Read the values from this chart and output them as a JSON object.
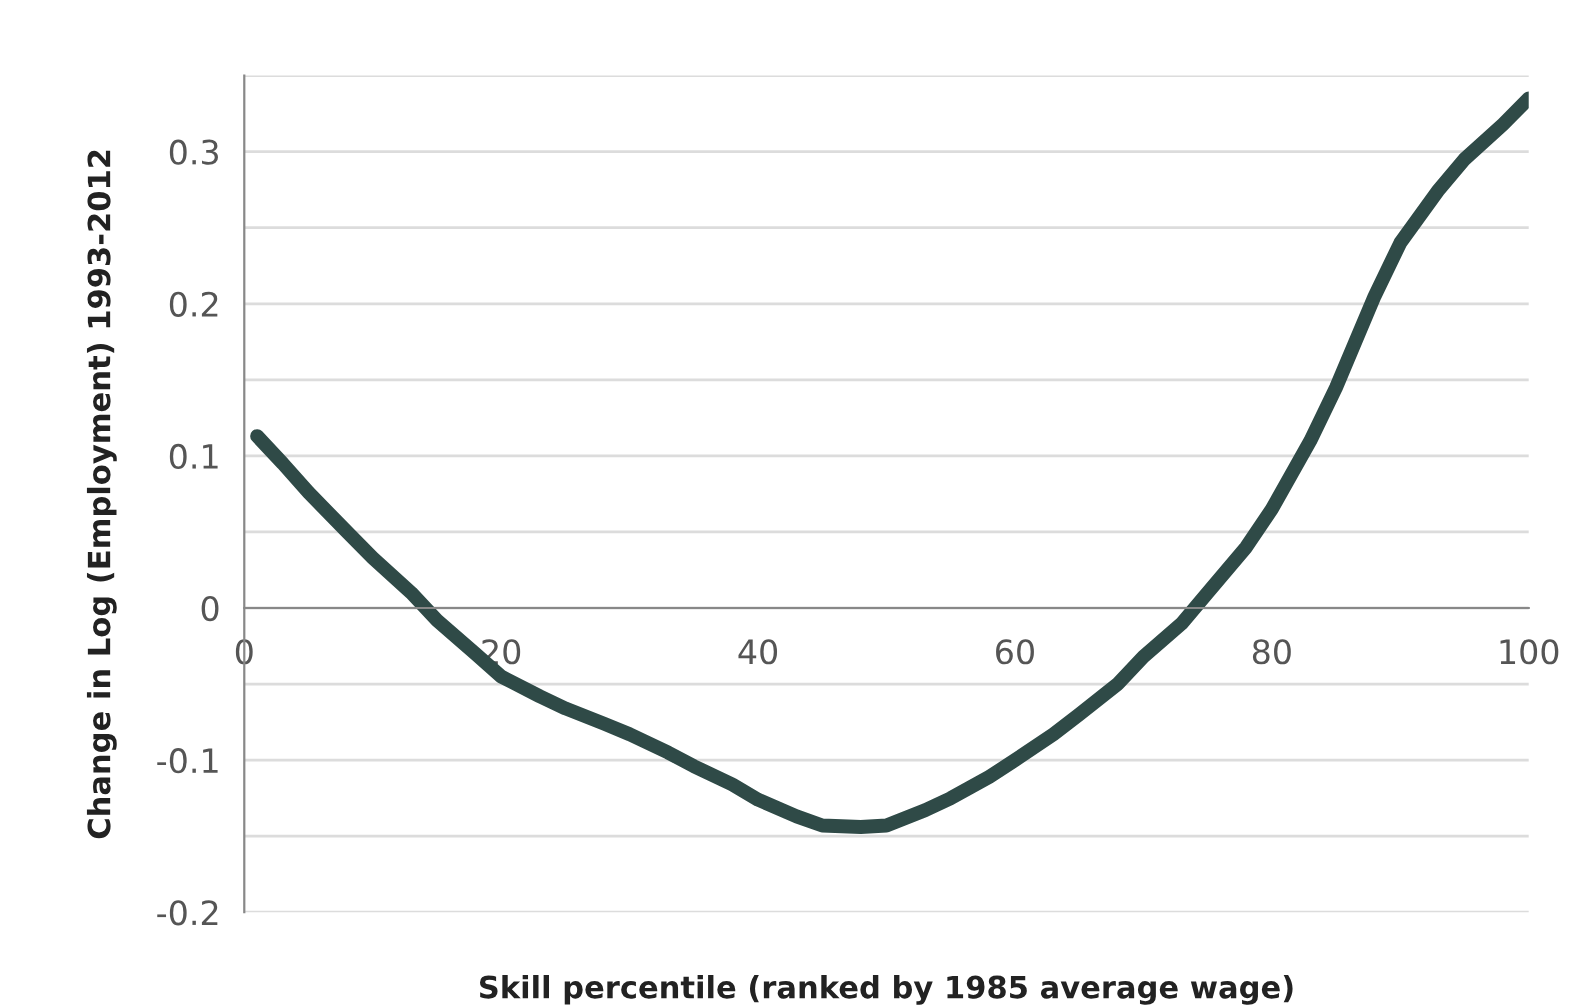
{
  "chart_data": {
    "type": "line",
    "xlabel": "Skill percentile (ranked by 1985 average wage)",
    "ylabel": "Change in Log (Employment) 1993-2012",
    "series": [
      {
        "color": "#2f4a47",
        "x": [
          1,
          3,
          5,
          8,
          10,
          13,
          15,
          18,
          20,
          23,
          25,
          28,
          30,
          33,
          35,
          38,
          40,
          43,
          45,
          48,
          50,
          53,
          55,
          58,
          60,
          63,
          65,
          68,
          70,
          73,
          75,
          78,
          80,
          83,
          85,
          88,
          90,
          93,
          95,
          98,
          100
        ],
        "values": [
          0.113,
          0.095,
          0.076,
          0.05,
          0.033,
          0.01,
          -0.008,
          -0.03,
          -0.045,
          -0.058,
          -0.066,
          -0.076,
          -0.083,
          -0.095,
          -0.104,
          -0.116,
          -0.126,
          -0.137,
          -0.143,
          -0.144,
          -0.143,
          -0.133,
          -0.125,
          -0.111,
          -0.1,
          -0.083,
          -0.07,
          -0.05,
          -0.032,
          -0.01,
          0.01,
          0.04,
          0.065,
          0.11,
          0.145,
          0.205,
          0.24,
          0.275,
          0.295,
          0.318,
          0.335
        ]
      }
    ],
    "xlim": [
      0,
      100
    ],
    "xticks": [
      0,
      20,
      40,
      60,
      80,
      100
    ],
    "ylim": [
      -0.2,
      0.35
    ],
    "yticks": [
      -0.2,
      {
        "value": -0.15,
        "label": null
      },
      -0.1,
      {
        "value": -0.05,
        "label": null
      },
      0,
      {
        "value": 0.05,
        "label": null
      },
      0.1,
      {
        "value": 0.15,
        "label": null
      },
      0.2,
      {
        "value": 0.25,
        "label": null
      },
      0.3,
      {
        "value": 0.35,
        "label": null
      }
    ],
    "grid": "y",
    "marker": "none",
    "line_style": "solid"
  }
}
